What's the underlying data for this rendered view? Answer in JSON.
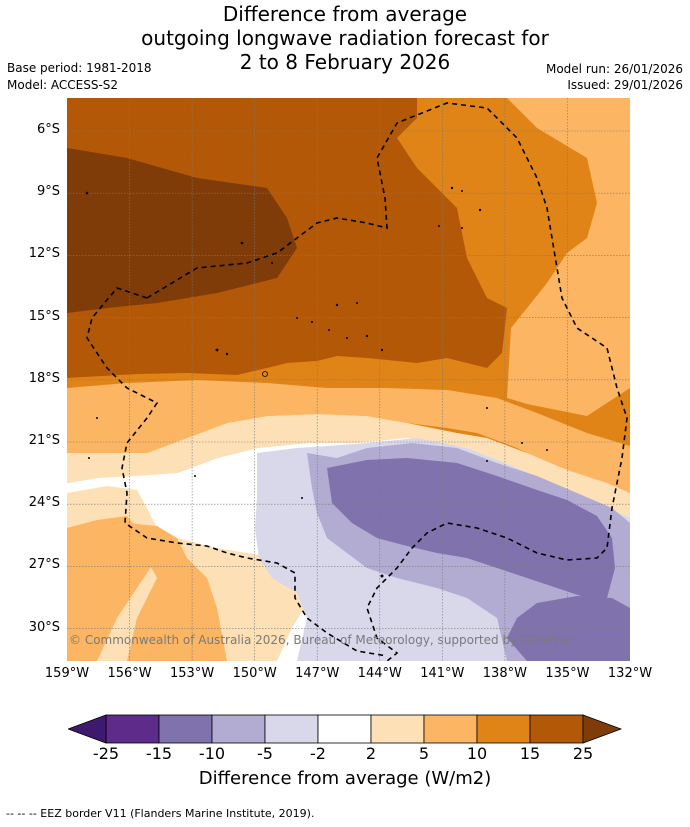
{
  "title": {
    "line1": "Difference from average",
    "line2": "outgoing longwave radiation forecast for",
    "line3": "2 to 8 February 2026"
  },
  "meta": {
    "base_period": "Base period: 1981-2018",
    "model": "Model: ACCESS-S2",
    "model_run": "Model run: 26/01/2026",
    "issued": "Issued: 29/01/2026"
  },
  "map": {
    "lat_labels": [
      "6°S",
      "9°S",
      "12°S",
      "15°S",
      "18°S",
      "21°S",
      "24°S",
      "27°S",
      "30°S"
    ],
    "lon_labels": [
      "159°W",
      "156°W",
      "153°W",
      "150°W",
      "147°W",
      "144°W",
      "141°W",
      "138°W",
      "135°W",
      "132°W"
    ],
    "copyright": "© Commonwealth of Australia 2026, Bureau of Meteorology, supported by COSPPac",
    "colors": {
      "n25": "#3d1a6e",
      "n20": "#5e2b8a",
      "n15": "#8072ad",
      "n10": "#b2abd2",
      "n5": "#d8d8ea",
      "zero": "#ffffff",
      "p2": "#fde0b6",
      "p5": "#fbb563",
      "p10": "#e08418",
      "p15": "#b35807",
      "p20": "#7f3b08"
    }
  },
  "colorbar": {
    "ticks": [
      "-25",
      "-15",
      "-10",
      "-5",
      "-2",
      "2",
      "5",
      "10",
      "15",
      "25"
    ],
    "title": "Difference from average (W/m2)"
  },
  "footer": "-- -- -- EEZ border V11 (Flanders Marine Institute, 2019)."
}
